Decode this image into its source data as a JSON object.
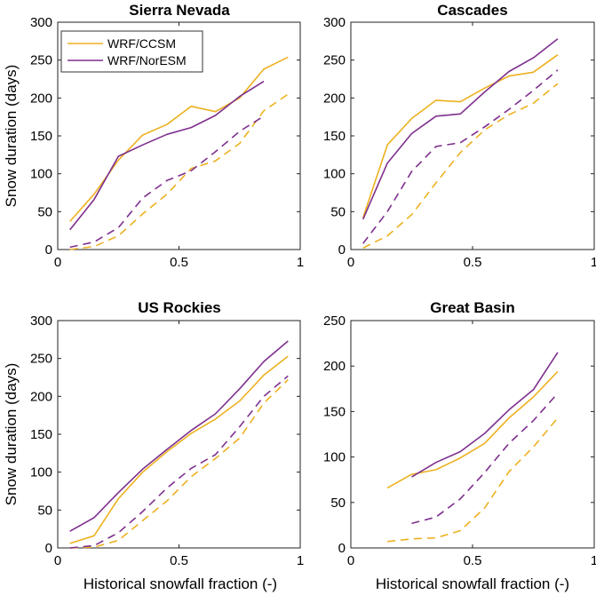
{
  "colors": {
    "ccsm": "#EDB120",
    "noresm": "#7E2F8E"
  },
  "legend": {
    "ccsm": "WRF/CCSM",
    "noresm": "WRF/NorESM"
  },
  "ylabel": "Snow duration (days)",
  "xlabel": "Historical snowfall fraction (-)",
  "chart_data": [
    {
      "type": "line",
      "title": "Sierra Nevada",
      "xlim": [
        0,
        1
      ],
      "ylim": [
        0,
        300
      ],
      "xticks": [
        0,
        0.5,
        1
      ],
      "xtick_labels": [
        "0",
        "0.5",
        "1"
      ],
      "yticks": [
        0,
        50,
        100,
        150,
        200,
        250,
        300
      ],
      "ytick_labels": [
        "0",
        "50",
        "100",
        "150",
        "200",
        "250",
        "300"
      ],
      "series": [
        {
          "name": "WRF/CCSM",
          "period": "historical",
          "style": "solid",
          "color_key": "ccsm",
          "x": [
            0.05,
            0.15,
            0.25,
            0.35,
            0.45,
            0.55,
            0.65,
            0.75,
            0.85,
            0.95
          ],
          "y": [
            37,
            73,
            118,
            151,
            165,
            189,
            182,
            200,
            238,
            254
          ]
        },
        {
          "name": "WRF/NorESM",
          "period": "historical",
          "style": "solid",
          "color_key": "noresm",
          "x": [
            0.05,
            0.15,
            0.25,
            0.35,
            0.45,
            0.55,
            0.65,
            0.75,
            0.85
          ],
          "y": [
            26,
            66,
            123,
            138,
            152,
            161,
            177,
            202,
            222
          ]
        },
        {
          "name": "WRF/CCSM",
          "period": "future",
          "style": "dashed",
          "color_key": "ccsm",
          "x": [
            0.05,
            0.15,
            0.25,
            0.35,
            0.45,
            0.55,
            0.65,
            0.75,
            0.85,
            0.95
          ],
          "y": [
            0,
            4,
            18,
            47,
            73,
            107,
            117,
            140,
            183,
            205
          ]
        },
        {
          "name": "WRF/NorESM",
          "period": "future",
          "style": "dashed",
          "color_key": "noresm",
          "x": [
            0.05,
            0.15,
            0.25,
            0.35,
            0.45,
            0.55,
            0.65,
            0.75,
            0.85
          ],
          "y": [
            3,
            10,
            29,
            68,
            91,
            104,
            129,
            156,
            176
          ]
        }
      ]
    },
    {
      "type": "line",
      "title": "Cascades",
      "xlim": [
        0,
        1
      ],
      "ylim": [
        0,
        300
      ],
      "xticks": [
        0,
        0.5,
        1
      ],
      "xtick_labels": [
        "0",
        "0.5",
        "1"
      ],
      "yticks": [
        0,
        50,
        100,
        150,
        200,
        250,
        300
      ],
      "ytick_labels": [
        "0",
        "50",
        "100",
        "150",
        "200",
        "250",
        "300"
      ],
      "series": [
        {
          "name": "WRF/CCSM",
          "period": "historical",
          "style": "solid",
          "color_key": "ccsm",
          "x": [
            0.05,
            0.15,
            0.25,
            0.35,
            0.45,
            0.55,
            0.65,
            0.75,
            0.85
          ],
          "y": [
            42,
            138,
            173,
            197,
            195,
            213,
            229,
            234,
            257
          ]
        },
        {
          "name": "WRF/NorESM",
          "period": "historical",
          "style": "solid",
          "color_key": "noresm",
          "x": [
            0.05,
            0.15,
            0.25,
            0.35,
            0.45,
            0.55,
            0.65,
            0.75,
            0.85
          ],
          "y": [
            40,
            114,
            153,
            176,
            179,
            208,
            235,
            253,
            278
          ]
        },
        {
          "name": "WRF/CCSM",
          "period": "future",
          "style": "dashed",
          "color_key": "ccsm",
          "x": [
            0.05,
            0.15,
            0.25,
            0.35,
            0.45,
            0.55,
            0.65,
            0.75,
            0.85
          ],
          "y": [
            2,
            18,
            46,
            88,
            128,
            158,
            178,
            193,
            219
          ]
        },
        {
          "name": "WRF/NorESM",
          "period": "future",
          "style": "dashed",
          "color_key": "noresm",
          "x": [
            0.05,
            0.15,
            0.25,
            0.35,
            0.45,
            0.55,
            0.65,
            0.75,
            0.85
          ],
          "y": [
            8,
            50,
            103,
            136,
            141,
            162,
            185,
            210,
            237
          ]
        }
      ]
    },
    {
      "type": "line",
      "title": "US Rockies",
      "xlim": [
        0,
        1
      ],
      "ylim": [
        0,
        300
      ],
      "xticks": [
        0,
        0.5,
        1
      ],
      "xtick_labels": [
        "0",
        "0.5",
        "1"
      ],
      "yticks": [
        0,
        50,
        100,
        150,
        200,
        250,
        300
      ],
      "ytick_labels": [
        "0",
        "50",
        "100",
        "150",
        "200",
        "250",
        "300"
      ],
      "series": [
        {
          "name": "WRF/CCSM",
          "period": "historical",
          "style": "solid",
          "color_key": "ccsm",
          "x": [
            0.05,
            0.15,
            0.25,
            0.35,
            0.45,
            0.55,
            0.65,
            0.75,
            0.85,
            0.95
          ],
          "y": [
            6,
            16,
            65,
            100,
            127,
            151,
            170,
            194,
            228,
            253
          ]
        },
        {
          "name": "WRF/NorESM",
          "period": "historical",
          "style": "solid",
          "color_key": "noresm",
          "x": [
            0.05,
            0.15,
            0.25,
            0.35,
            0.45,
            0.55,
            0.65,
            0.75,
            0.85,
            0.95
          ],
          "y": [
            22,
            40,
            73,
            104,
            130,
            155,
            177,
            210,
            246,
            273
          ]
        },
        {
          "name": "WRF/CCSM",
          "period": "future",
          "style": "dashed",
          "color_key": "ccsm",
          "x": [
            0.05,
            0.15,
            0.25,
            0.35,
            0.45,
            0.55,
            0.65,
            0.75,
            0.85,
            0.95
          ],
          "y": [
            0,
            1,
            10,
            36,
            62,
            94,
            118,
            145,
            191,
            222
          ]
        },
        {
          "name": "WRF/NorESM",
          "period": "future",
          "style": "dashed",
          "color_key": "noresm",
          "x": [
            0.05,
            0.15,
            0.25,
            0.35,
            0.45,
            0.55,
            0.65,
            0.75,
            0.85,
            0.95
          ],
          "y": [
            0,
            3,
            20,
            48,
            79,
            105,
            123,
            160,
            200,
            227
          ]
        }
      ]
    },
    {
      "type": "line",
      "title": "Great Basin",
      "xlim": [
        0,
        1
      ],
      "ylim": [
        0,
        250
      ],
      "xticks": [
        0,
        0.5,
        1
      ],
      "xtick_labels": [
        "0",
        "0.5",
        "1"
      ],
      "yticks": [
        0,
        50,
        100,
        150,
        200,
        250
      ],
      "ytick_labels": [
        "0",
        "50",
        "100",
        "150",
        "200",
        "250"
      ],
      "series": [
        {
          "name": "WRF/CCSM",
          "period": "historical",
          "style": "solid",
          "color_key": "ccsm",
          "x": [
            0.15,
            0.25,
            0.35,
            0.45,
            0.55,
            0.65,
            0.75,
            0.85
          ],
          "y": [
            66,
            81,
            86,
            99,
            115,
            143,
            166,
            194
          ]
        },
        {
          "name": "WRF/NorESM",
          "period": "historical",
          "style": "solid",
          "color_key": "noresm",
          "x": [
            0.25,
            0.35,
            0.45,
            0.55,
            0.65,
            0.75,
            0.85
          ],
          "y": [
            78,
            94,
            106,
            126,
            152,
            174,
            215
          ]
        },
        {
          "name": "WRF/CCSM",
          "period": "future",
          "style": "dashed",
          "color_key": "ccsm",
          "x": [
            0.15,
            0.25,
            0.35,
            0.45,
            0.55,
            0.65,
            0.75,
            0.85
          ],
          "y": [
            7,
            10,
            11,
            19,
            44,
            84,
            111,
            143
          ]
        },
        {
          "name": "WRF/NorESM",
          "period": "future",
          "style": "dashed",
          "color_key": "noresm",
          "x": [
            0.25,
            0.35,
            0.45,
            0.55,
            0.65,
            0.75,
            0.85
          ],
          "y": [
            27,
            34,
            54,
            83,
            115,
            140,
            170
          ]
        }
      ]
    }
  ]
}
